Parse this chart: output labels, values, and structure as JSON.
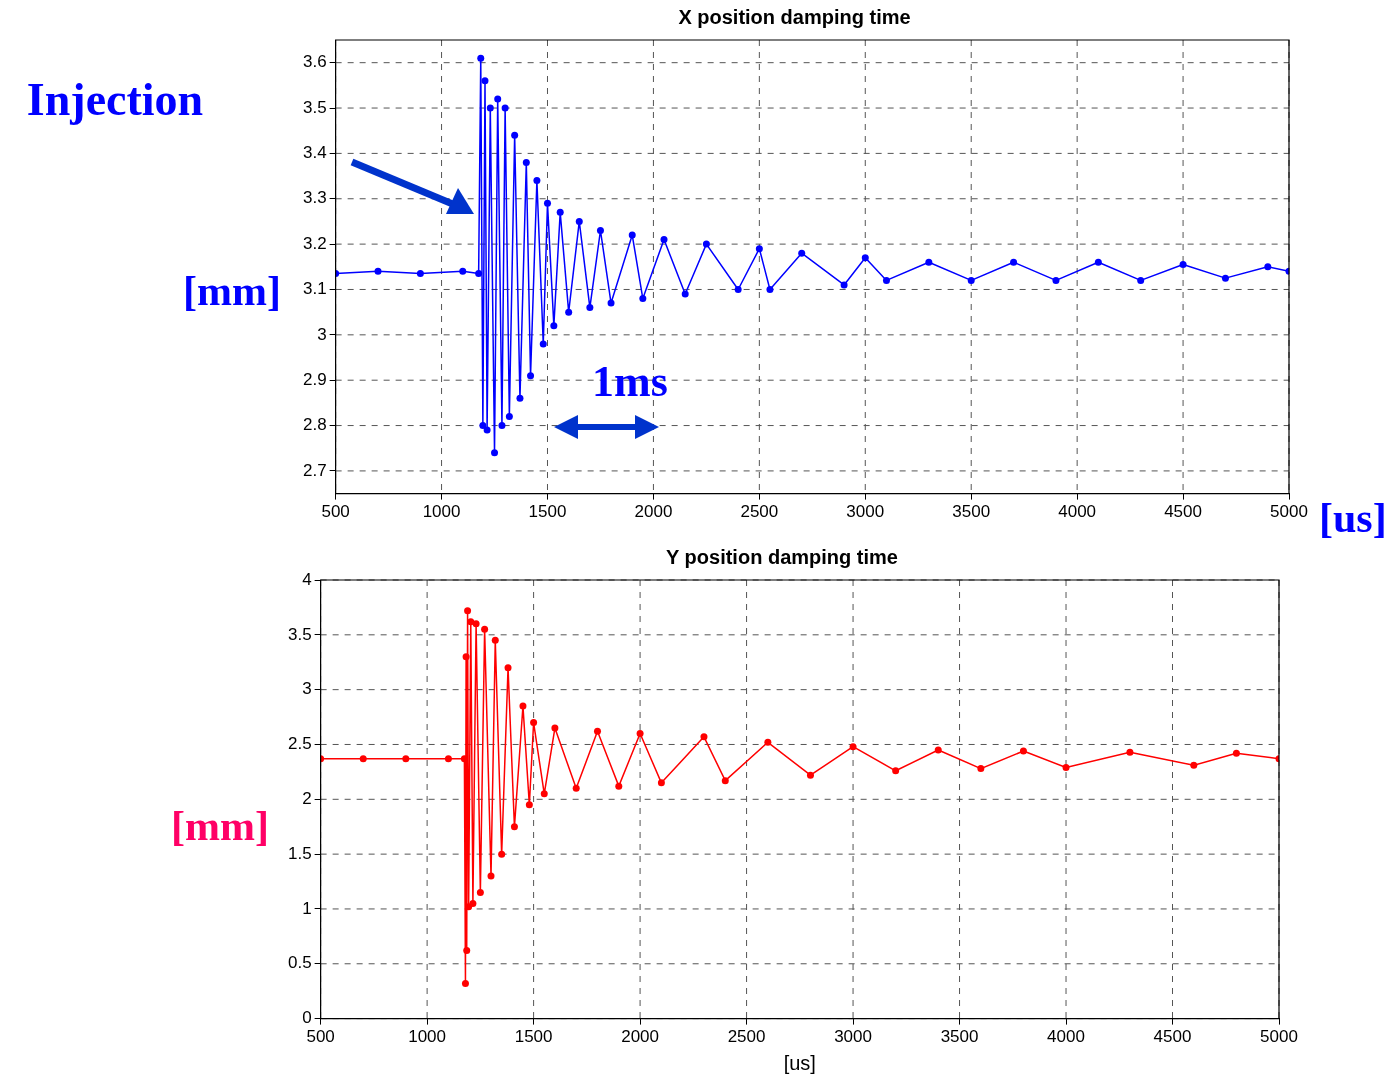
{
  "chart_data": [
    {
      "type": "line",
      "title": "X position damping time",
      "xlabel": "[us]",
      "ylabel": "[mm]",
      "annotations": [
        "Injection",
        "1ms"
      ],
      "x": [
        500,
        700,
        900,
        1100,
        1175,
        1185,
        1195,
        1205,
        1215,
        1230,
        1250,
        1265,
        1285,
        1300,
        1320,
        1345,
        1370,
        1400,
        1420,
        1450,
        1480,
        1500,
        1530,
        1560,
        1600,
        1650,
        1700,
        1750,
        1800,
        1900,
        1950,
        2050,
        2150,
        2250,
        2400,
        2500,
        2550,
        2700,
        2900,
        3000,
        3100,
        3300,
        3500,
        3700,
        3900,
        4100,
        4300,
        4500,
        4700,
        4900,
        5000
      ],
      "series": [
        {
          "color": "#0000ff",
          "values": [
            3.135,
            3.14,
            3.135,
            3.14,
            3.135,
            3.61,
            2.8,
            3.56,
            2.79,
            3.5,
            2.74,
            3.52,
            2.8,
            3.5,
            2.82,
            3.44,
            2.86,
            3.38,
            2.91,
            3.34,
            2.98,
            3.29,
            3.02,
            3.27,
            3.05,
            3.25,
            3.06,
            3.23,
            3.07,
            3.22,
            3.08,
            3.21,
            3.09,
            3.2,
            3.1,
            3.19,
            3.1,
            3.18,
            3.11,
            3.17,
            3.12,
            3.16,
            3.12,
            3.16,
            3.12,
            3.16,
            3.12,
            3.155,
            3.125,
            3.15,
            3.14
          ]
        }
      ],
      "xlim": [
        500,
        5000
      ],
      "xticks": [
        500,
        1000,
        1500,
        2000,
        2500,
        3000,
        3500,
        4000,
        4500,
        5000
      ],
      "ylim": [
        2.65,
        3.65
      ],
      "yticks": [
        2.7,
        2.8,
        2.9,
        3,
        3.1,
        3.2,
        3.3,
        3.4,
        3.5,
        3.6
      ],
      "grid": true,
      "marker": "circle",
      "line_style": "solid"
    },
    {
      "type": "line",
      "title": "Y position damping time",
      "xlabel": "[us]",
      "ylabel": "[mm]",
      "x": [
        500,
        700,
        900,
        1100,
        1175,
        1180,
        1183,
        1186,
        1190,
        1195,
        1205,
        1215,
        1230,
        1250,
        1270,
        1300,
        1320,
        1350,
        1380,
        1410,
        1450,
        1480,
        1500,
        1550,
        1600,
        1700,
        1800,
        1900,
        2000,
        2100,
        2300,
        2400,
        2600,
        2800,
        3000,
        3200,
        3400,
        3600,
        3800,
        4000,
        4300,
        4600,
        4800,
        5000
      ],
      "series": [
        {
          "color": "#ff0000",
          "values": [
            2.37,
            2.37,
            2.37,
            2.37,
            2.37,
            0.32,
            3.3,
            0.62,
            3.72,
            1.02,
            3.62,
            1.05,
            3.6,
            1.15,
            3.55,
            1.3,
            3.45,
            1.5,
            3.2,
            1.75,
            2.85,
            1.95,
            2.7,
            2.05,
            2.65,
            2.1,
            2.62,
            2.12,
            2.6,
            2.15,
            2.57,
            2.17,
            2.52,
            2.22,
            2.48,
            2.26,
            2.45,
            2.28,
            2.44,
            2.29,
            2.43,
            2.31,
            2.42,
            2.37
          ]
        }
      ],
      "xlim": [
        500,
        5000
      ],
      "xticks": [
        500,
        1000,
        1500,
        2000,
        2500,
        3000,
        3500,
        4000,
        4500,
        5000
      ],
      "ylim": [
        0,
        4
      ],
      "yticks": [
        0,
        0.5,
        1,
        1.5,
        2,
        2.5,
        3,
        3.5,
        4
      ],
      "grid": true,
      "marker": "circle",
      "line_style": "solid"
    }
  ]
}
